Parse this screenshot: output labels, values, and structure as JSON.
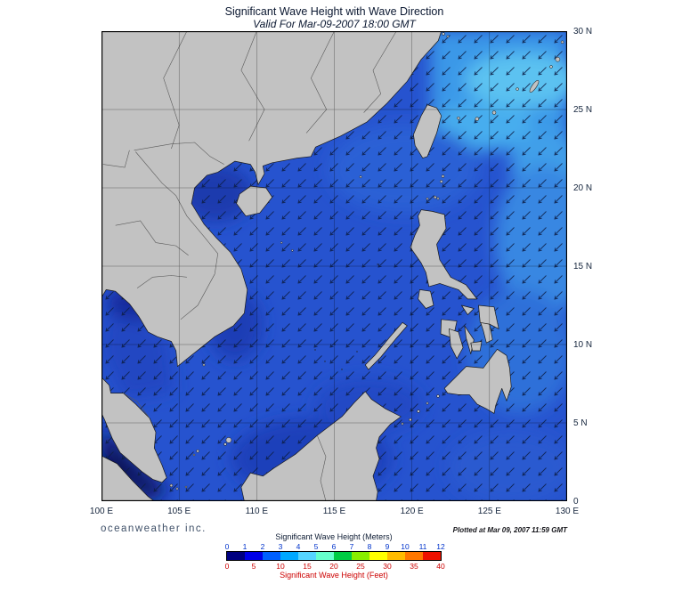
{
  "title": "Significant Wave Height with Wave Direction",
  "subtitle": "Valid For Mar-09-2007 18:00 GMT",
  "branding": "oceanweather inc.",
  "plotted": "Plotted at Mar 09, 2007 11:59 GMT",
  "axes": {
    "lon_labels": [
      "100 E",
      "105 E",
      "110 E",
      "115 E",
      "120 E",
      "125 E",
      "130 E"
    ],
    "lat_labels": [
      "30 N",
      "25 N",
      "20 N",
      "15 N",
      "10 N",
      "5 N",
      "0"
    ]
  },
  "legend": {
    "meters_label": "Significant Wave Height (Meters)",
    "feet_label": "Significant Wave Height (Feet)",
    "meters_ticks": [
      "0",
      "1",
      "2",
      "3",
      "4",
      "5",
      "6",
      "7",
      "8",
      "9",
      "10",
      "11",
      "12"
    ],
    "feet_ticks": [
      "0",
      "5",
      "10",
      "15",
      "20",
      "25",
      "30",
      "35",
      "40"
    ],
    "bar_colors": [
      "#000080",
      "#0000e8",
      "#0060ff",
      "#00a8ff",
      "#55d4ff",
      "#66ffcc",
      "#00cc44",
      "#88ee00",
      "#ffff00",
      "#ffbb00",
      "#ff7700",
      "#ee1100"
    ]
  },
  "map": {
    "sea_color": "#2653cf",
    "land_color": "#c2c2c2",
    "arrow_color": "#0c1d45"
  }
}
